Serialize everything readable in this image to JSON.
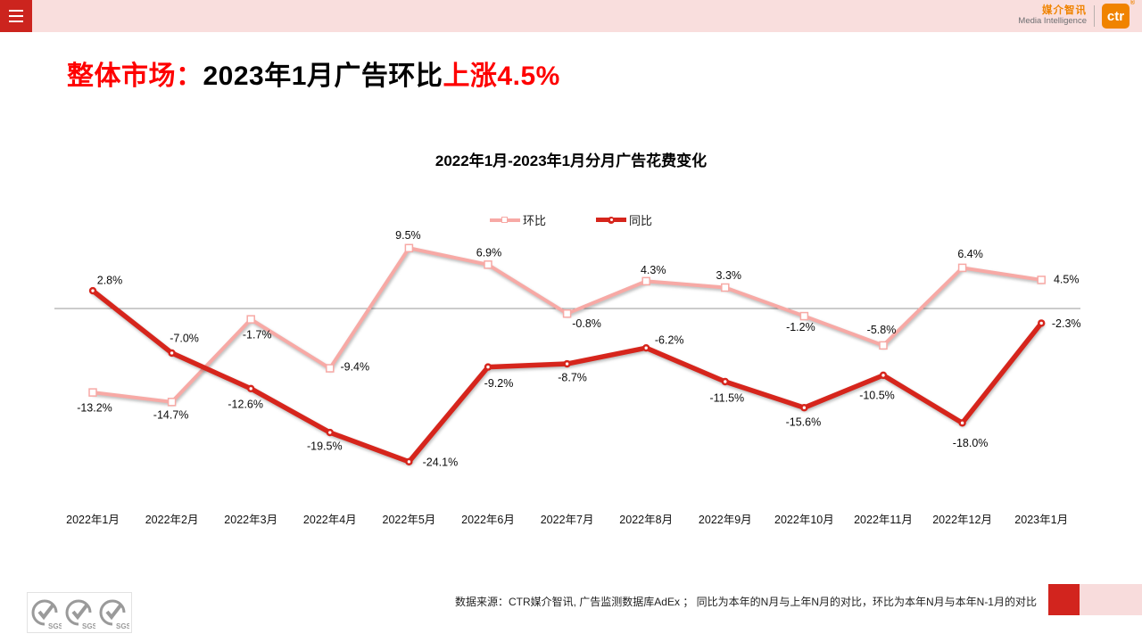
{
  "header": {
    "brand_cn": "媒介智讯",
    "brand_en": "Media Intelligence",
    "logo_text": "ctr",
    "reg_mark": "®"
  },
  "title": {
    "prefix": "整体市场：",
    "middle": "2023年1月广告环比",
    "highlight": "上涨4.5%"
  },
  "chart_data": {
    "type": "line",
    "title": "2022年1月-2023年1月分月广告花费变化",
    "unit": "%",
    "baseline": 0,
    "ylim": [
      -26,
      12
    ],
    "grid": "zero-line-only",
    "legend_position": "top-center",
    "categories": [
      "2022年1月",
      "2022年2月",
      "2022年3月",
      "2022年4月",
      "2022年5月",
      "2022年6月",
      "2022年7月",
      "2022年8月",
      "2022年9月",
      "2022年10月",
      "2022年11月",
      "2022年12月",
      "2023年1月"
    ],
    "series": [
      {
        "name": "环比",
        "color": "#f7a9a5",
        "marker": "square",
        "line_width": 4,
        "values": [
          -13.2,
          -14.7,
          -1.7,
          -9.4,
          9.5,
          6.9,
          -0.8,
          4.3,
          3.3,
          -1.2,
          -5.8,
          6.4,
          4.5
        ],
        "label_offsets": [
          [
            2,
            17
          ],
          [
            -1,
            14
          ],
          [
            7,
            17
          ],
          [
            28,
            -2
          ],
          [
            -1,
            -15
          ],
          [
            1,
            -14
          ],
          [
            22,
            11
          ],
          [
            8,
            -13
          ],
          [
            4,
            -14
          ],
          [
            -4,
            12
          ],
          [
            -2,
            -18
          ],
          [
            9,
            -16
          ],
          [
            28,
            -1
          ]
        ]
      },
      {
        "name": "同比",
        "color": "#d6251c",
        "marker": "circle",
        "line_width": 5.5,
        "values": [
          2.8,
          -7.0,
          -12.6,
          -19.5,
          -24.1,
          -9.2,
          -8.7,
          -6.2,
          -11.5,
          -15.6,
          -10.5,
          -18.0,
          -2.3
        ],
        "label_offsets": [
          [
            19,
            -12
          ],
          [
            14,
            -17
          ],
          [
            -6,
            17
          ],
          [
            -6,
            15
          ],
          [
            35,
            0
          ],
          [
            12,
            18
          ],
          [
            6,
            15
          ],
          [
            26,
            -9
          ],
          [
            2,
            18
          ],
          [
            -1,
            16
          ],
          [
            -7,
            22
          ],
          [
            9,
            22
          ],
          [
            28,
            0
          ]
        ]
      }
    ]
  },
  "footer": {
    "source_text": "数据来源：CTR媒介智讯, 广告监测数据库AdEx ； 同比为本年的N月与上年N月的对比，环比为本年N月与本年N-1月的对比",
    "sgs_labels": [
      "SGS",
      "SGS",
      "SGS"
    ]
  },
  "colors": {
    "topbar_pink": "#f9dedd",
    "menu_red": "#cc241e",
    "brand_orange": "#f08300",
    "title_red": "#fe0000",
    "zero_line": "#999999",
    "corner_red": "#d2241e",
    "corner_pink": "#f8dcdc"
  }
}
